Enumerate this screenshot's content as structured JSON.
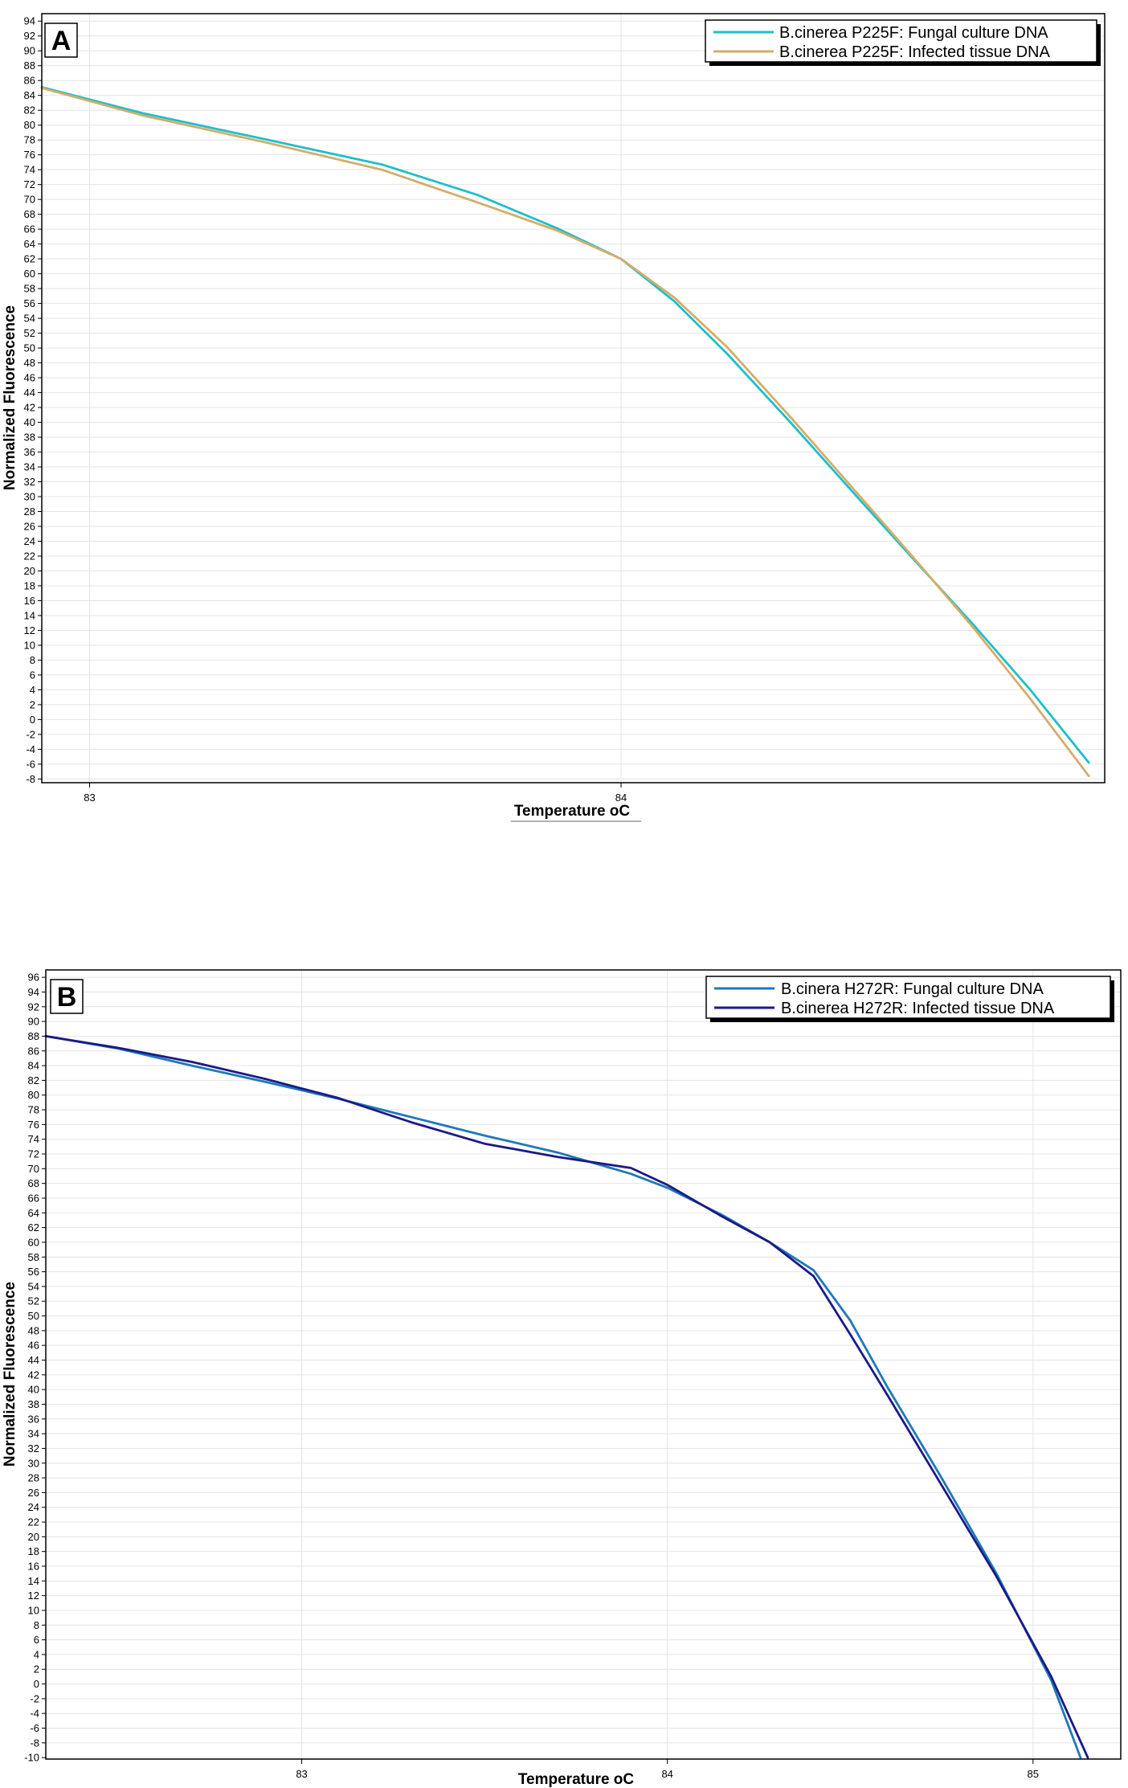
{
  "chart_data": [
    {
      "type": "line",
      "panel": "A",
      "xlabel": "Temperature oC",
      "ylabel": "Normalized Fluorescence",
      "xlim": [
        82.91,
        84.91
      ],
      "ylim": [
        -8.5,
        95
      ],
      "x_ticks": [
        83,
        84
      ],
      "y_ticks": [
        94,
        92,
        90,
        88,
        86,
        84,
        82,
        80,
        78,
        76,
        74,
        72,
        70,
        68,
        66,
        64,
        62,
        60,
        58,
        56,
        54,
        52,
        50,
        48,
        46,
        44,
        42,
        40,
        38,
        36,
        34,
        32,
        30,
        28,
        26,
        24,
        22,
        20,
        18,
        16,
        14,
        12,
        10,
        8,
        6,
        4,
        2,
        0,
        -2,
        -4,
        -6,
        -8
      ],
      "grid": true,
      "legend_position": "top-right",
      "series": [
        {
          "name": "B.cinerea P225F: Fungal culture DNA",
          "color": "#1fbfc8",
          "x": [
            82.91,
            83.1,
            83.33,
            83.55,
            83.73,
            83.88,
            84.0,
            84.1,
            84.2,
            84.32,
            84.45,
            84.55,
            84.66,
            84.77,
            84.88
          ],
          "y": [
            85.1,
            81.6,
            78.1,
            74.7,
            70.6,
            66.1,
            62.0,
            56.3,
            49.2,
            39.9,
            29.5,
            21.6,
            13.0,
            4.0,
            -5.8
          ]
        },
        {
          "name": "B.cinerea P225F: Infected tissue DNA",
          "color": "#d4ad6a",
          "x": [
            82.91,
            83.1,
            83.33,
            83.55,
            83.73,
            83.88,
            84.0,
            84.1,
            84.2,
            84.32,
            84.45,
            84.55,
            84.66,
            84.77,
            84.88
          ],
          "y": [
            85.0,
            81.3,
            77.7,
            74.0,
            69.6,
            65.8,
            62.0,
            56.8,
            50.1,
            40.6,
            30.0,
            21.8,
            12.6,
            2.8,
            -7.6
          ]
        }
      ]
    },
    {
      "type": "line",
      "panel": "B",
      "xlabel": "Temperature oC",
      "ylabel": "Normalized Fluorescence",
      "xlim": [
        82.3,
        85.24
      ],
      "ylim": [
        -10.2,
        97
      ],
      "x_ticks": [
        83,
        84,
        85
      ],
      "y_ticks": [
        96,
        94,
        92,
        90,
        88,
        86,
        84,
        82,
        80,
        78,
        76,
        74,
        72,
        70,
        68,
        66,
        64,
        62,
        60,
        58,
        56,
        54,
        52,
        50,
        48,
        46,
        44,
        42,
        40,
        38,
        36,
        34,
        32,
        30,
        28,
        26,
        24,
        22,
        20,
        18,
        16,
        14,
        12,
        10,
        8,
        6,
        4,
        2,
        0,
        -2,
        -4,
        -6,
        -8,
        -10
      ],
      "grid": true,
      "legend_position": "top-right",
      "series": [
        {
          "name": "B.cinera H272R: Fungal culture DNA",
          "color": "#1f78b8",
          "x": [
            82.3,
            82.5,
            82.7,
            82.9,
            83.1,
            83.3,
            83.5,
            83.7,
            83.9,
            84.0,
            84.15,
            84.28,
            84.4,
            84.5,
            84.6,
            84.75,
            84.9,
            85.05,
            85.13
          ],
          "y": [
            88.0,
            86.3,
            84.0,
            81.8,
            79.5,
            77.0,
            74.5,
            72.2,
            69.3,
            67.4,
            63.7,
            60.0,
            56.2,
            49.4,
            40.5,
            28.0,
            15.0,
            0.5,
            -10.0
          ]
        },
        {
          "name": "B.cinerea H272R: Infected tissue DNA",
          "color": "#1a1a86",
          "x": [
            82.3,
            82.5,
            82.7,
            82.9,
            83.1,
            83.3,
            83.5,
            83.7,
            83.9,
            84.0,
            84.15,
            84.28,
            84.4,
            84.5,
            84.6,
            84.75,
            84.9,
            85.05,
            85.15
          ],
          "y": [
            88.0,
            86.4,
            84.5,
            82.2,
            79.6,
            76.3,
            73.4,
            71.6,
            70.1,
            67.8,
            63.5,
            60.0,
            55.4,
            47.5,
            39.4,
            27.0,
            14.6,
            1.0,
            -10.0
          ]
        }
      ]
    }
  ]
}
